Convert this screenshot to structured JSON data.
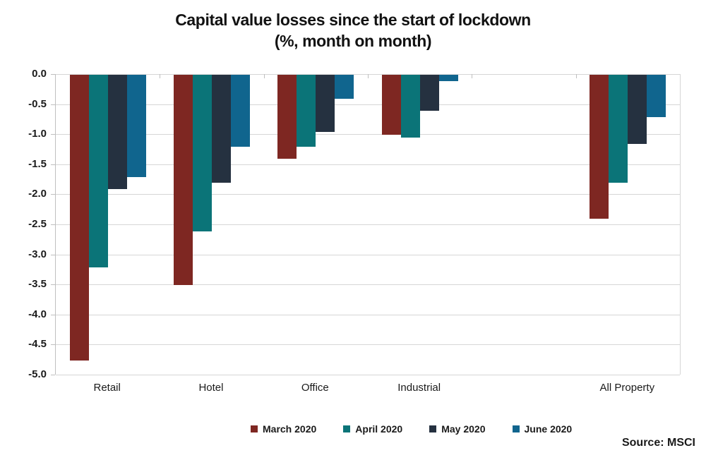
{
  "title": {
    "line1": "Capital value losses since the start of lockdown",
    "line2": "(%, month on month)"
  },
  "source_text": "Source: MSCI",
  "chart_data": {
    "type": "bar",
    "title": "Capital value losses since the start of lockdown (%, month on month)",
    "categories": [
      "Retail",
      "Hotel",
      "Office",
      "Industrial",
      "All Property"
    ],
    "series": [
      {
        "name": "March 2020",
        "color": "#7E2722",
        "values": [
          -4.75,
          -3.5,
          -1.4,
          -1.0,
          -2.4
        ]
      },
      {
        "name": "April 2020",
        "color": "#0B7478",
        "values": [
          -3.2,
          -2.6,
          -1.2,
          -1.05,
          -1.8
        ]
      },
      {
        "name": "May 2020",
        "color": "#253140",
        "values": [
          -1.9,
          -1.8,
          -0.95,
          -0.6,
          -1.15
        ]
      },
      {
        "name": "June 2020",
        "color": "#10658E",
        "values": [
          -1.7,
          -1.2,
          -0.4,
          -0.1,
          -0.7
        ]
      }
    ],
    "ylim": [
      0,
      -5
    ],
    "ytick_step": 0.5,
    "yticks": [
      "0.0",
      "-0.5",
      "-1.0",
      "-1.5",
      "-2.0",
      "-2.5",
      "-3.0",
      "-3.5",
      "-4.0",
      "-4.5",
      "-5.0"
    ],
    "grid": true,
    "legend_position": "bottom",
    "layout": {
      "slots": [
        "Retail",
        "Hotel",
        "Office",
        "Industrial",
        "",
        "All Property"
      ]
    },
    "colors": {
      "gridline": "#d6d6d6",
      "axis": "#bfbfbf",
      "text": "#1a1a1a"
    }
  }
}
